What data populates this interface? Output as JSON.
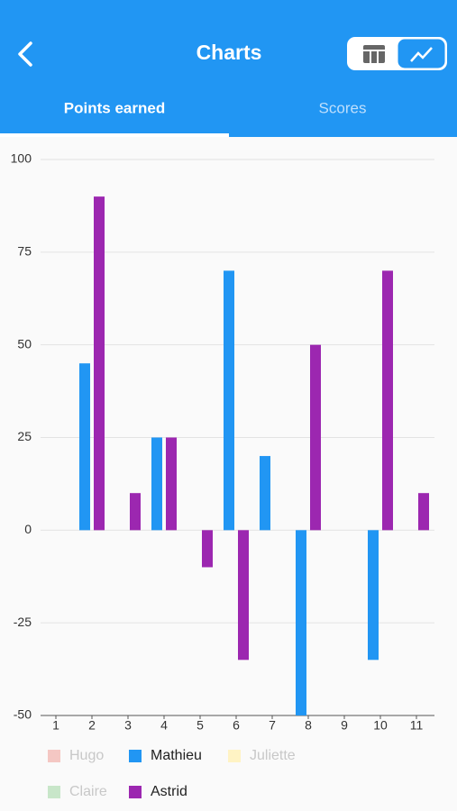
{
  "header": {
    "title": "Charts",
    "tabs": [
      "Points earned",
      "Scores"
    ],
    "active_tab": 0
  },
  "chart_data": {
    "type": "bar",
    "categories": [
      "1",
      "2",
      "3",
      "4",
      "5",
      "6",
      "7",
      "8",
      "9",
      "10",
      "11"
    ],
    "series": [
      {
        "name": "Hugo",
        "color": "#f4c7c3",
        "visible": false,
        "values": [
          null,
          null,
          null,
          null,
          null,
          null,
          null,
          null,
          null,
          null,
          null
        ]
      },
      {
        "name": "Mathieu",
        "color": "#2196f3",
        "visible": true,
        "values": [
          0,
          45,
          0,
          25,
          0,
          70,
          20,
          -50,
          0,
          -35,
          0
        ]
      },
      {
        "name": "Juliette",
        "color": "#fff3c4",
        "visible": false,
        "values": [
          null,
          null,
          null,
          null,
          null,
          null,
          null,
          null,
          null,
          null,
          null
        ]
      },
      {
        "name": "Claire",
        "color": "#c8e6c9",
        "visible": false,
        "values": [
          null,
          null,
          null,
          null,
          null,
          null,
          null,
          null,
          null,
          null,
          null
        ]
      },
      {
        "name": "Astrid",
        "color": "#9c27b0",
        "visible": true,
        "values": [
          0,
          90,
          10,
          25,
          -10,
          -35,
          0,
          50,
          0,
          70,
          10
        ]
      }
    ],
    "ylim": [
      -50,
      100
    ],
    "yticks": [
      -50,
      -25,
      0,
      25,
      50,
      75,
      100
    ],
    "grid": true
  }
}
